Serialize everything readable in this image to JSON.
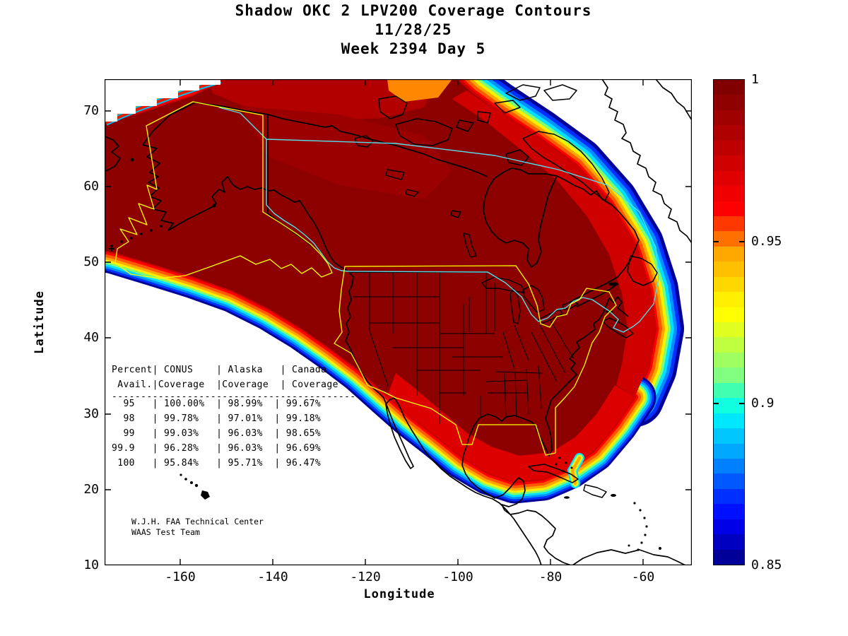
{
  "title": {
    "line1": "Shadow OKC 2 LPV200 Coverage Contours",
    "line2": "11/28/25",
    "line3": "Week 2394 Day 5"
  },
  "axes": {
    "xlabel": "Longitude",
    "ylabel": "Latitude",
    "xticks": [
      "-160",
      "-140",
      "-120",
      "-100",
      "-80",
      "-60"
    ],
    "yticks": [
      "70",
      "60",
      "50",
      "40",
      "30",
      "20",
      "10"
    ]
  },
  "colorbar": {
    "tick_labels": [
      "1",
      "0.95",
      "0.9",
      "0.85"
    ],
    "min": 0.85,
    "max": 1,
    "steps": [
      "#800000",
      "#8f0000",
      "#9f0000",
      "#af0000",
      "#bf0000",
      "#cf0000",
      "#e00000",
      "#f00000",
      "#ff0000",
      "#ff3800",
      "#ff7000",
      "#ffa800",
      "#ffc000",
      "#ffd800",
      "#fff000",
      "#ffff00",
      "#e0ff20",
      "#c0ff40",
      "#a0ff60",
      "#80ff80",
      "#40ffb0",
      "#10ffe0",
      "#00e8ff",
      "#00c8ff",
      "#00a8ff",
      "#0080ff",
      "#0058ff",
      "#0030ff",
      "#0010ff",
      "#0000e8",
      "#0000c0",
      "#000098"
    ]
  },
  "coverage_table": {
    "col_separator": "|",
    "ruler_char": "-",
    "columns": [
      {
        "line1": "Percent",
        "line2": "Avail."
      },
      {
        "line1": "CONUS",
        "line2": "Coverage"
      },
      {
        "line1": "Alaska",
        "line2": "Coverage"
      },
      {
        "line1": "Canada",
        "line2": "Coverage"
      }
    ],
    "rows": [
      [
        "95",
        "100.00%",
        "98.99%",
        "99.67%"
      ],
      [
        "98",
        "99.78%",
        "97.01%",
        "99.18%"
      ],
      [
        "99",
        "99.03%",
        "96.03%",
        "98.65%"
      ],
      [
        "99.9",
        "96.28%",
        "96.03%",
        "96.69%"
      ],
      [
        "100",
        "95.84%",
        "95.71%",
        "96.47%"
      ]
    ]
  },
  "credit": {
    "line1": "W.J.H. FAA Technical Center",
    "line2": "WAAS Test Team"
  },
  "colors": {
    "background": "#ffffff",
    "core_red": "#8c0000",
    "band_red": "#ff0000",
    "band_orange": "#ffa800",
    "band_yellow": "#fff000",
    "band_green": "#80ff70",
    "band_cyan": "#00e0ff",
    "band_blue": "#0030ff",
    "band_navy": "#000098",
    "conus_boundary": "#ffff00",
    "alaska_boundary": "#ffff00",
    "canada_boundary": "#55dde8",
    "coastline": "#000000"
  },
  "chart_data": {
    "type": "heatmap",
    "title": "Shadow OKC 2 LPV200 Coverage Contours",
    "subtitle_date": "11/28/25",
    "subtitle_week": "Week 2394 Day 5",
    "xlabel": "Longitude",
    "ylabel": "Latitude",
    "xlim": [
      -176,
      -52
    ],
    "ylim": [
      10,
      74.5
    ],
    "xticks": [
      -160,
      -140,
      -120,
      -100,
      -80,
      -60
    ],
    "yticks": [
      70,
      60,
      50,
      40,
      30,
      20,
      10
    ],
    "colorbar": {
      "range": [
        0.85,
        1.0
      ],
      "ticks": [
        1,
        0.95,
        0.9,
        0.85
      ],
      "colormap": "jet"
    },
    "description": "Filled contour map of LPV200 coverage availability over North America. Dark red core (availability ~1.0) covers Alaska, Canada and CONUS, fading through jet colors (red, orange, yellow, green, cyan, blue) to 0.85 at the outer edges. Yellow polygons mark CONUS and Alaska service volumes; cyan polyline marks the Canada service volume.",
    "availability_table": {
      "columns": [
        "Percent Avail.",
        "CONUS Coverage",
        "Alaska Coverage",
        "Canada Coverage"
      ],
      "rows": [
        [
          "95",
          "100.00%",
          "98.99%",
          "99.67%"
        ],
        [
          "98",
          "99.78%",
          "97.01%",
          "99.18%"
        ],
        [
          "99",
          "99.03%",
          "96.03%",
          "98.65%"
        ],
        [
          "99.9",
          "96.28%",
          "96.03%",
          "96.69%"
        ],
        [
          "100",
          "95.84%",
          "95.71%",
          "96.47%"
        ]
      ]
    }
  }
}
